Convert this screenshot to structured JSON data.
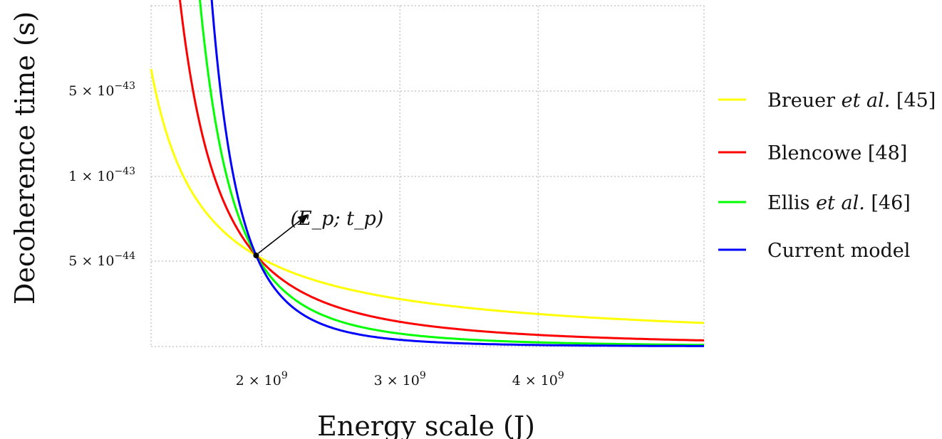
{
  "chart_data": {
    "type": "line",
    "title": "",
    "xlabel": "Energy scale (J)",
    "ylabel": "Decoherence time (s)",
    "xlim": [
      1200000000.0,
      5200000000.0
    ],
    "x_ticks": [
      {
        "value": 2000000000.0,
        "mantissa": "2 × 10",
        "exp": "9"
      },
      {
        "value": 3000000000.0,
        "mantissa": "3 × 10",
        "exp": "9"
      },
      {
        "value": 4000000000.0,
        "mantissa": "4 × 10",
        "exp": "9"
      }
    ],
    "y_ticks": [
      {
        "level": 3,
        "mantissa": "5 × 10",
        "exp": "−43"
      },
      {
        "level": 2,
        "mantissa": "1 × 10",
        "exp": "−43"
      },
      {
        "level": 1,
        "mantissa": "5 × 10",
        "exp": "−44"
      }
    ],
    "grid": true,
    "legend_position": "right",
    "annotation": {
      "text": "(E_p; t_p)",
      "x": 1960000000.0
    },
    "series": [
      {
        "name": "Breuer et al. [45]",
        "color": "#ffff00",
        "exponent": 1
      },
      {
        "name": "Blencowe [48]",
        "color": "#ff0000",
        "exponent": 2
      },
      {
        "name": "Ellis et al. [46]",
        "color": "#00ff00",
        "exponent": 3
      },
      {
        "name": "Current model",
        "color": "#0000ff",
        "exponent": 4
      }
    ]
  },
  "legend": {
    "items": [
      {
        "main": "Breuer ",
        "italic": "et al.",
        "ref": " [45]",
        "color": "#ffff00"
      },
      {
        "main": "Blencowe ",
        "italic": "",
        "ref": "[48]",
        "color": "#ff0000"
      },
      {
        "main": "Ellis ",
        "italic": "et al.",
        "ref": " [46]",
        "color": "#00ff00"
      },
      {
        "main": "Current model",
        "italic": "",
        "ref": "",
        "color": "#0000ff"
      }
    ]
  }
}
